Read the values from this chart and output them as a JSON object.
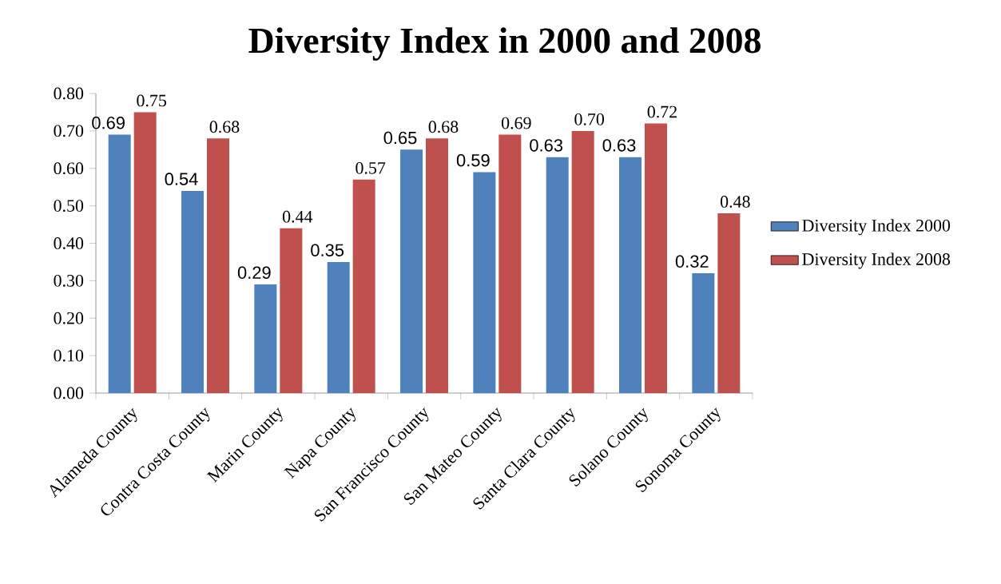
{
  "chart_data": {
    "type": "bar",
    "title": "Diversity Index in 2000 and 2008",
    "categories": [
      "Alameda County",
      "Contra Costa County",
      "Marin County",
      "Napa County",
      "San Francisco County",
      "San Mateo County",
      "Santa Clara County",
      "Solano County",
      "Sonoma County"
    ],
    "series": [
      {
        "name": "Diversity Index 2000",
        "color": "#4f81bd",
        "values": [
          0.69,
          0.54,
          0.29,
          0.35,
          0.65,
          0.59,
          0.63,
          0.63,
          0.32
        ],
        "value_labels": [
          "0.69",
          "0.54",
          "0.29",
          "0.35",
          "0.65",
          "0.59",
          "0.63",
          "0.63",
          "0.32"
        ]
      },
      {
        "name": "Diversity Index 2008",
        "color": "#c0504d",
        "values": [
          0.75,
          0.68,
          0.44,
          0.57,
          0.68,
          0.69,
          0.7,
          0.72,
          0.48
        ],
        "value_labels": [
          "0.75",
          "0.68",
          "0.44",
          "0.57",
          "0.68",
          "0.69",
          "0.70",
          "0.72",
          "0.48"
        ]
      }
    ],
    "ylim": [
      0,
      0.8
    ],
    "yticks": [
      {
        "value": 0,
        "label": "0.00"
      },
      {
        "value": 0.1,
        "label": "0.10"
      },
      {
        "value": 0.2,
        "label": "0.20"
      },
      {
        "value": 0.3,
        "label": "0.30"
      },
      {
        "value": 0.4,
        "label": "0.40"
      },
      {
        "value": 0.5,
        "label": "0.50"
      },
      {
        "value": 0.6,
        "label": "0.60"
      },
      {
        "value": 0.7,
        "label": "0.70"
      },
      {
        "value": 0.8,
        "label": "0.80"
      }
    ],
    "legend": "right",
    "grid": false
  }
}
